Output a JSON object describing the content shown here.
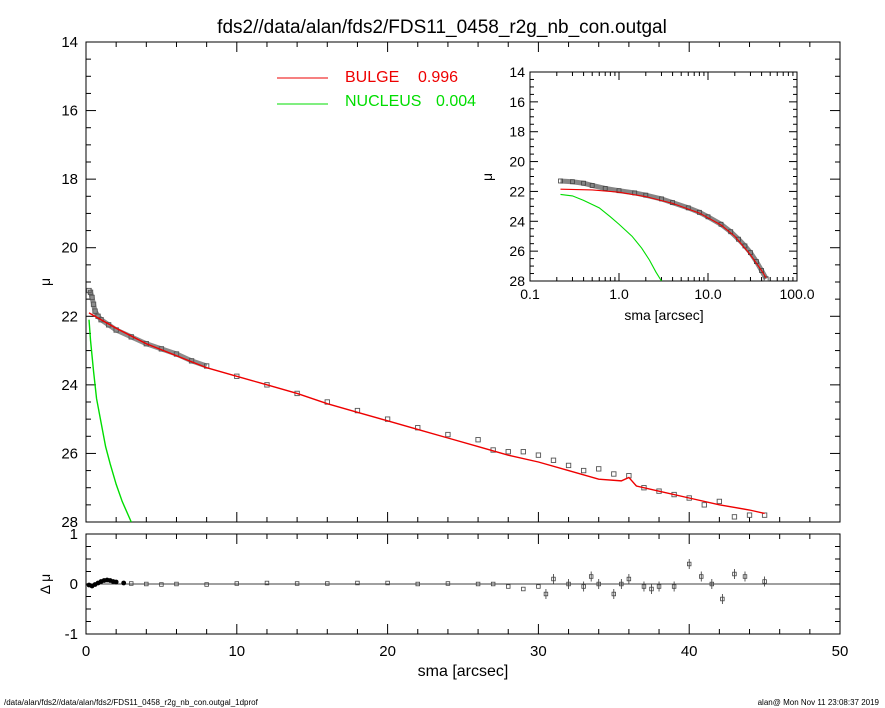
{
  "title": "fds2//data/alan/fds2/FDS11_0458_r2g_nb_con.outgal",
  "footer": {
    "left": "/data/alan/fds2//data/alan/fds2/FDS11_0458_r2g_nb_con.outgal_1dprof",
    "right": "alan@  Mon Nov 11 23:08:37 2019"
  },
  "colors": {
    "bulge": "#ee0000",
    "nucleus": "#00dd00",
    "data": "#555555",
    "axis": "#000000"
  },
  "chart_data": [
    {
      "id": "main",
      "type": "scatter",
      "xlabel": "",
      "ylabel": "μ",
      "xlim": [
        0,
        50
      ],
      "ylim": [
        28,
        14
      ],
      "yticks": [
        "14",
        "16",
        "18",
        "20",
        "22",
        "24",
        "26",
        "28"
      ],
      "legend": [
        {
          "name": "BULGE",
          "value": "0.996",
          "color": "#ee0000"
        },
        {
          "name": "NUCLEUS",
          "value": "0.004",
          "color": "#00dd00"
        }
      ],
      "legend_position": "top-center",
      "observed": {
        "sma": [
          0.2,
          0.3,
          0.4,
          0.5,
          0.6,
          0.8,
          1.0,
          1.5,
          2.0,
          3.0,
          4.0,
          5.0,
          6.0,
          7.0,
          8.0,
          10.0,
          12.0,
          14.0,
          16.0,
          18.0,
          20.0,
          22.0,
          24.0,
          26.0,
          27.0,
          28.0,
          29.0,
          30.0,
          31.0,
          32.0,
          33.0,
          34.0,
          35.0,
          36.0,
          37.0,
          38.0,
          39.0,
          40.0,
          41.0,
          42.0,
          43.0,
          44.0,
          45.0
        ],
        "mu": [
          21.25,
          21.3,
          21.45,
          21.65,
          21.85,
          22.0,
          22.1,
          22.25,
          22.4,
          22.6,
          22.8,
          22.95,
          23.1,
          23.3,
          23.45,
          23.75,
          24.0,
          24.25,
          24.5,
          24.75,
          25.0,
          25.25,
          25.45,
          25.6,
          25.9,
          25.95,
          25.95,
          26.05,
          26.2,
          26.35,
          26.5,
          26.45,
          26.6,
          26.65,
          27.0,
          27.1,
          27.2,
          27.3,
          27.5,
          27.4,
          27.85,
          27.8,
          27.8
        ]
      },
      "series": [
        {
          "name": "BULGE",
          "color": "#ee0000",
          "x": [
            0.2,
            1.0,
            2.0,
            4.0,
            6.0,
            8.0,
            10.0,
            12.0,
            14.0,
            16.0,
            18.0,
            20.0,
            22.0,
            24.0,
            26.0,
            28.0,
            30.0,
            32.0,
            34.0,
            35.5,
            36.0,
            36.5,
            38.0,
            40.0,
            42.0,
            44.0,
            45.0
          ],
          "y": [
            21.9,
            22.1,
            22.35,
            22.8,
            23.15,
            23.5,
            23.75,
            24.0,
            24.25,
            24.55,
            24.8,
            25.05,
            25.3,
            25.55,
            25.8,
            26.05,
            26.25,
            26.5,
            26.75,
            26.8,
            26.7,
            26.95,
            27.1,
            27.3,
            27.5,
            27.65,
            27.75
          ]
        },
        {
          "name": "NUCLEUS",
          "color": "#00dd00",
          "x": [
            0.2,
            0.3,
            0.5,
            0.7,
            1.0,
            1.3,
            1.6,
            2.0,
            2.4,
            2.8,
            3.0
          ],
          "y": [
            22.1,
            22.7,
            23.6,
            24.4,
            25.1,
            25.8,
            26.3,
            26.9,
            27.4,
            27.8,
            28.0
          ]
        }
      ]
    },
    {
      "id": "inset",
      "type": "line",
      "xlabel": "sma [arcsec]",
      "ylabel": "μ",
      "xscale": "log",
      "xlim": [
        0.1,
        100.0
      ],
      "ylim": [
        28,
        14
      ],
      "xticks": [
        "0.1",
        "1.0",
        "10.0",
        "100.0"
      ],
      "yticks": [
        "14",
        "16",
        "18",
        "20",
        "22",
        "24",
        "26",
        "28"
      ],
      "observed": {
        "sma": [
          0.22,
          0.3,
          0.4,
          0.5,
          0.7,
          1.0,
          1.5,
          2.0,
          3.0,
          4.0,
          6.0,
          8.0,
          10.0,
          14.0,
          18.0,
          22.0,
          26.0,
          30.0,
          35.0,
          40.0,
          45.0
        ],
        "mu": [
          21.3,
          21.35,
          21.45,
          21.6,
          21.8,
          21.95,
          22.1,
          22.25,
          22.5,
          22.75,
          23.1,
          23.4,
          23.7,
          24.2,
          24.7,
          25.2,
          25.65,
          26.1,
          26.7,
          27.3,
          27.85
        ]
      },
      "series": [
        {
          "name": "BULGE",
          "color": "#ee0000",
          "x": [
            0.22,
            0.5,
            1.0,
            2.0,
            4.0,
            8.0,
            14.0,
            20.0,
            30.0,
            40.0,
            45.0
          ],
          "y": [
            21.85,
            21.9,
            22.05,
            22.35,
            22.8,
            23.45,
            24.25,
            25.0,
            26.25,
            27.3,
            27.8
          ]
        },
        {
          "name": "NUCLEUS",
          "color": "#00dd00",
          "x": [
            0.22,
            0.3,
            0.4,
            0.6,
            0.8,
            1.0,
            1.4,
            1.8,
            2.2,
            2.6,
            3.0
          ],
          "y": [
            22.2,
            22.3,
            22.6,
            23.1,
            23.7,
            24.2,
            25.0,
            25.8,
            26.6,
            27.4,
            28.1
          ]
        }
      ]
    },
    {
      "id": "residual",
      "type": "scatter",
      "xlabel": "sma [arcsec]",
      "ylabel": "Δ μ",
      "xlim": [
        0,
        50
      ],
      "ylim": [
        -1,
        1
      ],
      "xticks": [
        "0",
        "10",
        "20",
        "30",
        "40",
        "50"
      ],
      "yticks": [
        "1",
        "0",
        "-1"
      ],
      "x": [
        0.2,
        0.4,
        0.6,
        0.8,
        1.0,
        1.2,
        1.4,
        1.6,
        1.8,
        2.0,
        2.5,
        3.0,
        4.0,
        5.0,
        6.0,
        8.0,
        10.0,
        12.0,
        14.0,
        16.0,
        18.0,
        20.0,
        22.0,
        24.0,
        26.0,
        27.0,
        28.0,
        29.0,
        30.0,
        30.5,
        31.0,
        32.0,
        33.0,
        33.5,
        34.0,
        35.0,
        35.5,
        36.0,
        37.0,
        37.5,
        38.0,
        39.0,
        40.0,
        40.8,
        41.5,
        42.2,
        43.0,
        43.7,
        45.0
      ],
      "y": [
        -0.02,
        -0.04,
        -0.01,
        0.02,
        0.05,
        0.07,
        0.08,
        0.07,
        0.05,
        0.04,
        0.02,
        0.01,
        0.0,
        -0.01,
        0.0,
        -0.01,
        0.01,
        0.02,
        0.01,
        0.01,
        0.02,
        0.02,
        0.0,
        0.01,
        0.0,
        0.0,
        -0.05,
        -0.1,
        -0.05,
        -0.2,
        0.1,
        0.0,
        -0.05,
        0.15,
        0.0,
        -0.2,
        0.0,
        0.1,
        -0.05,
        -0.1,
        -0.05,
        -0.05,
        0.4,
        0.15,
        0.0,
        -0.3,
        0.2,
        0.15,
        0.05
      ]
    }
  ]
}
